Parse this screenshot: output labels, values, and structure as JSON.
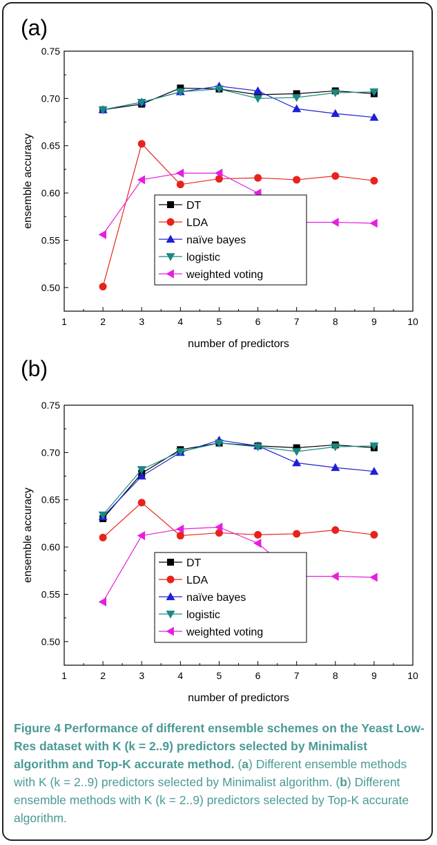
{
  "panels": [
    {
      "label": "(a)",
      "chart_data": {
        "type": "line",
        "xlabel": "number of predictors",
        "ylabel": "ensemble accuracy",
        "xlim": [
          1,
          10
        ],
        "ylim": [
          0.475,
          0.75
        ],
        "xticks": [
          1,
          2,
          3,
          4,
          5,
          6,
          7,
          8,
          9,
          10
        ],
        "yticks": [
          0.5,
          0.55,
          0.6,
          0.65,
          0.7,
          0.75
        ],
        "ytick_labels": [
          "0.50",
          "0.55",
          "0.60",
          "0.65",
          "0.70",
          "0.75"
        ],
        "legend_position": "lower-center",
        "x": [
          2,
          3,
          4,
          5,
          6,
          7,
          8,
          9
        ],
        "series": [
          {
            "name": "DT",
            "color": "#000000",
            "marker": "square",
            "values": [
              0.688,
              0.694,
              0.711,
              0.71,
              0.704,
              0.705,
              0.708,
              0.705
            ]
          },
          {
            "name": "LDA",
            "color": "#e8231c",
            "marker": "circle",
            "values": [
              0.501,
              0.652,
              0.609,
              0.615,
              0.616,
              0.614,
              0.618,
              0.613
            ]
          },
          {
            "name": "naïve bayes",
            "color": "#1f20d6",
            "marker": "triangle-up",
            "values": [
              0.688,
              0.696,
              0.707,
              0.713,
              0.708,
              0.689,
              0.684,
              0.68
            ]
          },
          {
            "name": "logistic",
            "color": "#1a8a80",
            "marker": "triangle-down",
            "values": [
              0.688,
              0.696,
              0.707,
              0.71,
              0.7,
              0.701,
              0.706,
              0.707
            ]
          },
          {
            "name": "weighted voting",
            "color": "#e51ee0",
            "marker": "triangle-left",
            "values": [
              0.556,
              0.614,
              0.621,
              0.621,
              0.6,
              0.569,
              0.569,
              0.568
            ]
          }
        ]
      }
    },
    {
      "label": "(b)",
      "chart_data": {
        "type": "line",
        "xlabel": "number of predictors",
        "ylabel": "ensemble accuracy",
        "xlim": [
          1,
          10
        ],
        "ylim": [
          0.475,
          0.75
        ],
        "xticks": [
          1,
          2,
          3,
          4,
          5,
          6,
          7,
          8,
          9,
          10
        ],
        "yticks": [
          0.5,
          0.55,
          0.6,
          0.65,
          0.7,
          0.75
        ],
        "ytick_labels": [
          "0.50",
          "0.55",
          "0.60",
          "0.65",
          "0.70",
          "0.75"
        ],
        "legend_position": "lower-center",
        "x": [
          2,
          3,
          4,
          5,
          6,
          7,
          8,
          9
        ],
        "series": [
          {
            "name": "DT",
            "color": "#000000",
            "marker": "square",
            "values": [
              0.63,
              0.678,
              0.703,
              0.71,
              0.707,
              0.705,
              0.708,
              0.705
            ]
          },
          {
            "name": "LDA",
            "color": "#e8231c",
            "marker": "circle",
            "values": [
              0.61,
              0.647,
              0.612,
              0.615,
              0.613,
              0.614,
              0.618,
              0.613
            ]
          },
          {
            "name": "naïve bayes",
            "color": "#1f20d6",
            "marker": "triangle-up",
            "values": [
              0.632,
              0.675,
              0.7,
              0.713,
              0.707,
              0.689,
              0.684,
              0.68
            ]
          },
          {
            "name": "logistic",
            "color": "#1a8a80",
            "marker": "triangle-down",
            "values": [
              0.634,
              0.682,
              0.701,
              0.71,
              0.706,
              0.701,
              0.706,
              0.707
            ]
          },
          {
            "name": "weighted voting",
            "color": "#e51ee0",
            "marker": "triangle-left",
            "values": [
              0.542,
              0.612,
              0.619,
              0.621,
              0.604,
              0.569,
              0.569,
              0.568
            ]
          }
        ]
      }
    }
  ],
  "caption": {
    "title": "Figure 4 Performance of different ensemble schemes on the Yeast Low-Res dataset with K (k = 2..9) predictors selected by Minimalist algorithm and Top-K accurate method.",
    "part_a_open": "(",
    "part_a_letter": "a",
    "part_a_text": ") Different ensemble methods with K (k = 2..9) predictors selected by Minimalist algorithm.",
    "part_b_open": " (",
    "part_b_letter": "b",
    "part_b_text": ") Different ensemble methods with K (k = 2..9) predictors selected by Top-K accurate algorithm."
  }
}
